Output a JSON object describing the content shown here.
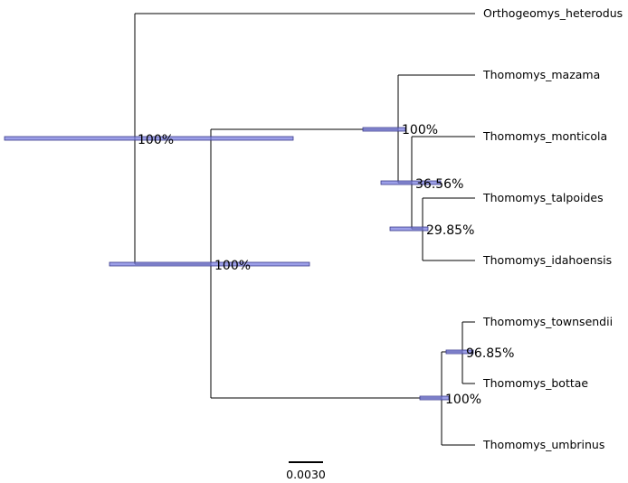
{
  "colors": {
    "branch": "#000000",
    "hpd_bar": "#7b7fe0"
  },
  "tree": {
    "tips": [
      {
        "id": "t1",
        "label": "Orthogeomys_heterodus"
      },
      {
        "id": "t2",
        "label": "Thomomys_mazama"
      },
      {
        "id": "t3",
        "label": "Thomomys_monticola"
      },
      {
        "id": "t4",
        "label": "Thomomys_talpoides"
      },
      {
        "id": "t5",
        "label": "Thomomys_idahoensis"
      },
      {
        "id": "t6",
        "label": "Thomomys_townsendii"
      },
      {
        "id": "t7",
        "label": "Thomomys_bottae"
      },
      {
        "id": "t8",
        "label": "Thomomys_umbrinus"
      }
    ],
    "nodes": [
      {
        "id": "n_root",
        "support": "100%"
      },
      {
        "id": "n_thomomys",
        "support": "100%"
      },
      {
        "id": "n_north",
        "support": "100%"
      },
      {
        "id": "n_mont",
        "support": "36.56%"
      },
      {
        "id": "n_talp",
        "support": "29.85%"
      },
      {
        "id": "n_south",
        "support": "100%"
      },
      {
        "id": "n_towns",
        "support": "96.85%"
      }
    ]
  },
  "scale_bar": {
    "label": "0.0030"
  }
}
